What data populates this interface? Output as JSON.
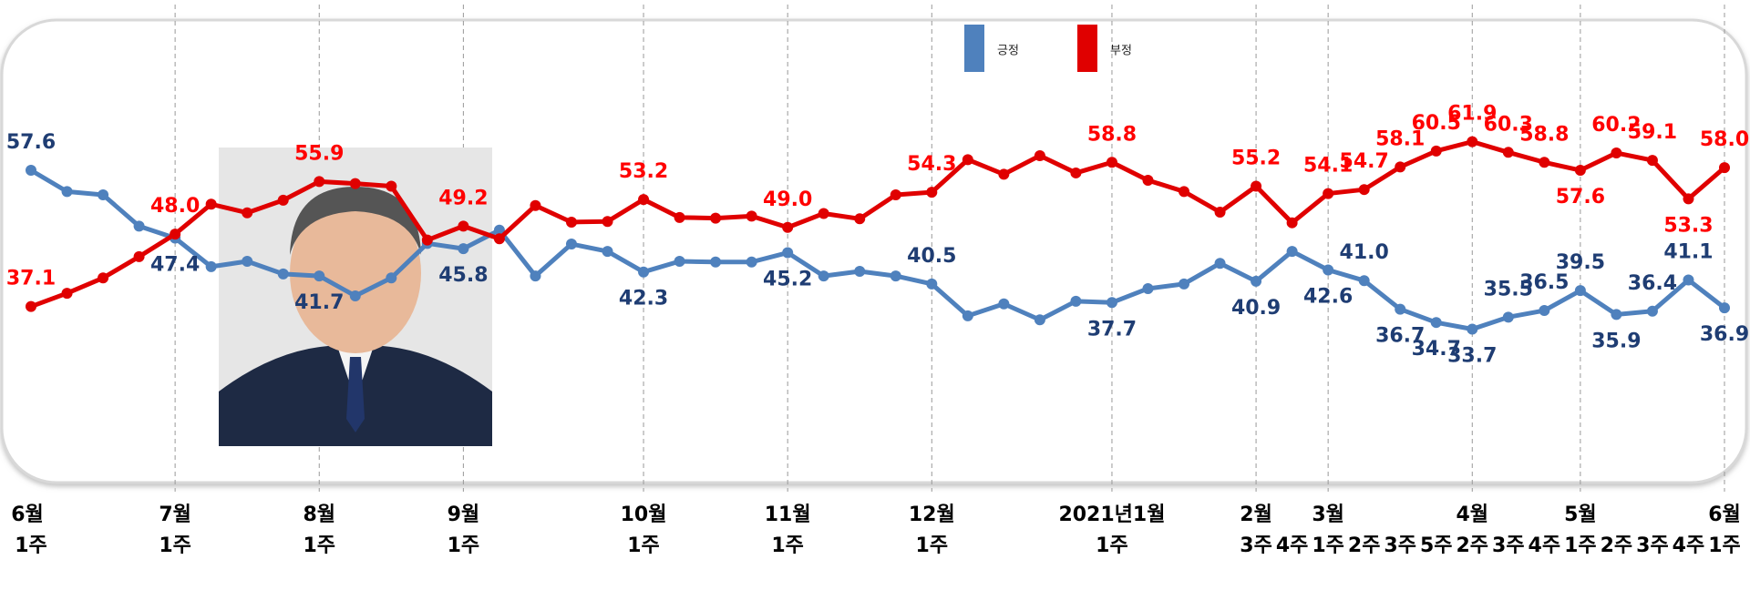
{
  "chart_data": {
    "type": "line",
    "ylim": [
      25,
      70
    ],
    "x_group_labels": [
      "6월",
      null,
      null,
      null,
      "7월",
      null,
      null,
      null,
      "8월",
      null,
      null,
      null,
      "9월",
      null,
      null,
      null,
      null,
      "10월",
      null,
      null,
      null,
      "11월",
      null,
      null,
      null,
      "12월",
      null,
      null,
      null,
      null,
      "2021년1월",
      null,
      null,
      null,
      "2월",
      null,
      "3월",
      null,
      null,
      null,
      "4월",
      null,
      null,
      "5월",
      null,
      null,
      null,
      "6월"
    ],
    "categories": [
      "1주",
      null,
      null,
      null,
      "1주",
      null,
      null,
      null,
      "1주",
      null,
      null,
      null,
      "1주",
      null,
      null,
      null,
      null,
      "1주",
      null,
      null,
      null,
      "1주",
      null,
      null,
      null,
      "1주",
      null,
      null,
      null,
      null,
      "1주",
      null,
      null,
      null,
      "3주",
      "4주",
      "1주",
      "2주",
      "3주",
      "5주",
      "2주",
      "3주",
      "4주",
      "1주",
      "2주",
      "3주",
      "4주",
      "1주"
    ],
    "series": [
      {
        "name": "긍정",
        "color": "#4f81bd",
        "label_color": "#1f3d73",
        "values": [
          57.6,
          54.4,
          53.9,
          49.2,
          47.4,
          43.1,
          43.9,
          42.0,
          41.7,
          38.7,
          41.4,
          46.6,
          45.8,
          48.6,
          41.7,
          46.5,
          45.4,
          42.3,
          43.9,
          43.8,
          43.8,
          45.2,
          41.7,
          42.4,
          41.7,
          40.5,
          35.7,
          37.5,
          35.1,
          37.9,
          37.7,
          39.8,
          40.5,
          43.6,
          40.9,
          45.4,
          42.6,
          41.0,
          36.7,
          34.7,
          33.7,
          35.5,
          36.5,
          39.5,
          35.9,
          36.4,
          41.1,
          36.9
        ],
        "value_labels": [
          "57.6",
          null,
          null,
          null,
          "47.4",
          null,
          null,
          null,
          "41.7",
          null,
          null,
          null,
          "45.8",
          null,
          null,
          null,
          null,
          "42.3",
          null,
          null,
          null,
          "45.2",
          null,
          null,
          null,
          "40.5",
          null,
          null,
          null,
          null,
          "37.7",
          null,
          null,
          null,
          "40.9",
          null,
          "42.6",
          "41.0",
          "36.7",
          "34.7",
          "33.7",
          "35.5",
          "36.5",
          "39.5",
          "35.9",
          "36.4",
          "41.1",
          "36.9"
        ]
      },
      {
        "name": "부정",
        "color": "#e00000",
        "label_color": "#ff0000",
        "values": [
          37.1,
          39.1,
          41.4,
          44.6,
          48.0,
          52.5,
          51.2,
          53.1,
          55.9,
          55.6,
          55.2,
          47.1,
          49.2,
          47.3,
          52.3,
          49.8,
          49.9,
          53.2,
          50.5,
          50.4,
          50.7,
          49.0,
          51.1,
          50.3,
          53.9,
          54.3,
          59.2,
          57.0,
          59.8,
          57.2,
          58.8,
          56.1,
          54.4,
          51.3,
          55.2,
          49.7,
          54.1,
          54.7,
          58.1,
          60.5,
          61.9,
          60.3,
          58.8,
          57.6,
          60.2,
          59.1,
          53.3,
          58.0
        ],
        "value_labels": [
          "37.1",
          null,
          null,
          null,
          "48.0",
          null,
          null,
          null,
          "55.9",
          null,
          null,
          null,
          "49.2",
          null,
          null,
          null,
          null,
          "53.2",
          null,
          null,
          null,
          "49.0",
          null,
          null,
          null,
          "54.3",
          null,
          null,
          null,
          null,
          "58.8",
          null,
          null,
          null,
          "55.2",
          null,
          "54.1",
          "54.7",
          "58.1",
          "60.5",
          "61.9",
          "60.3",
          "58.8",
          "57.6",
          "60.2",
          "59.1",
          "53.3",
          "58.0"
        ]
      }
    ],
    "legend": "top"
  }
}
